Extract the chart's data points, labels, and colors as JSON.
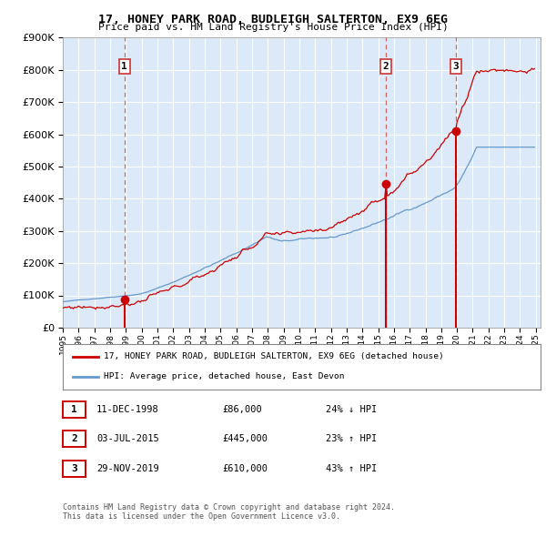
{
  "title": "17, HONEY PARK ROAD, BUDLEIGH SALTERTON, EX9 6EG",
  "subtitle": "Price paid vs. HM Land Registry's House Price Index (HPI)",
  "plot_bg_color": "#dce9f8",
  "ylim": [
    0,
    900000
  ],
  "yticks": [
    0,
    100000,
    200000,
    300000,
    400000,
    500000,
    600000,
    700000,
    800000,
    900000
  ],
  "sale_years_float": [
    1998.917,
    2015.5,
    2019.914
  ],
  "sale_prices": [
    86000,
    445000,
    610000
  ],
  "sale_labels": [
    "1",
    "2",
    "3"
  ],
  "legend_line1": "17, HONEY PARK ROAD, BUDLEIGH SALTERTON, EX9 6EG (detached house)",
  "legend_line2": "HPI: Average price, detached house, East Devon",
  "table_data": [
    [
      "1",
      "11-DEC-1998",
      "£86,000",
      "24% ↓ HPI"
    ],
    [
      "2",
      "03-JUL-2015",
      "£445,000",
      "23% ↑ HPI"
    ],
    [
      "3",
      "29-NOV-2019",
      "£610,000",
      "43% ↑ HPI"
    ]
  ],
  "footer_line1": "Contains HM Land Registry data © Crown copyright and database right 2024.",
  "footer_line2": "This data is licensed under the Open Government Licence v3.0.",
  "red_color": "#cc0000",
  "blue_color": "#6699cc",
  "dashed_color": "#cc3333"
}
